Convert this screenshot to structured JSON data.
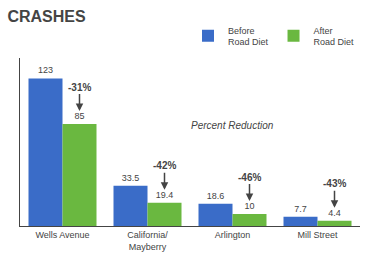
{
  "chart_data": {
    "type": "bar",
    "title": "CRASHES",
    "categories": [
      "Wells Avenue",
      "California/\nMayberry",
      "Arlington",
      "Mill Street"
    ],
    "series": [
      {
        "name": "Before\nRoad Diet",
        "color": "#3a6cc8",
        "values": [
          123,
          33.5,
          18.6,
          7.7
        ]
      },
      {
        "name": "After\nRoad Diet",
        "color": "#6ab840",
        "values": [
          85,
          19.4,
          10,
          4.4
        ]
      }
    ],
    "ylim": [
      0,
      140
    ],
    "grid": false,
    "legend": "upper right",
    "data_labels": true,
    "tick_labels": "x",
    "annotations": [
      {
        "text": "-31%",
        "category": "Wells Avenue"
      },
      {
        "text": "-42%",
        "category": "California/\nMayberry"
      },
      {
        "text": "-46%",
        "category": "Arlington"
      },
      {
        "text": "-43%",
        "category": "Mill Street"
      },
      {
        "text": "Percent Reduction"
      }
    ]
  }
}
